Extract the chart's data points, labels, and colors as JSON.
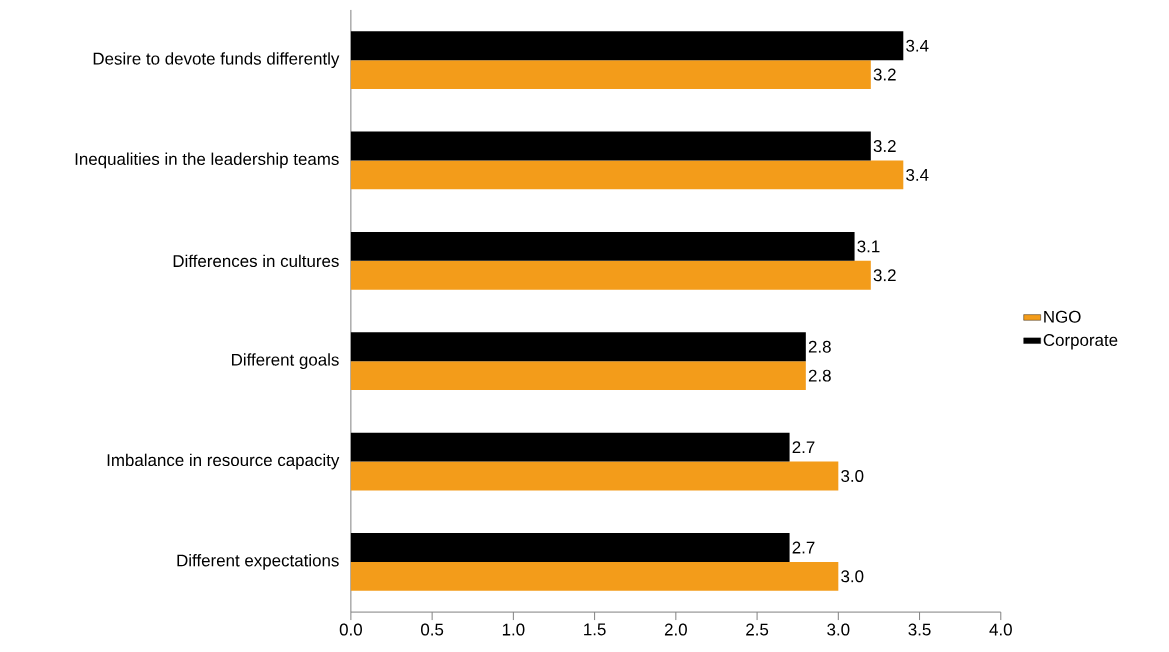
{
  "chart_data": {
    "type": "bar",
    "orientation": "horizontal",
    "categories": [
      "Desire to devote funds differently",
      "Inequalities in the leadership teams",
      "Differences in cultures",
      "Different goals",
      "Imbalance in resource capacity",
      "Different expectations"
    ],
    "series": [
      {
        "name": "NGO",
        "color": "#f39c1a",
        "values": [
          3.2,
          3.4,
          3.2,
          2.8,
          3.0,
          3.0
        ],
        "value_labels": [
          "3.2",
          "3.4",
          "3.2",
          "2.8",
          "3.0",
          "3.0"
        ]
      },
      {
        "name": "Corporate",
        "color": "#000000",
        "values": [
          3.4,
          3.2,
          3.1,
          2.8,
          2.7,
          2.7
        ],
        "value_labels": [
          "3.4",
          "3.2",
          "3.1",
          "2.8",
          "2.7",
          "2.7"
        ]
      }
    ],
    "xlim": [
      0,
      4
    ],
    "xticks": [
      {
        "value": 0,
        "label": "0.0"
      },
      {
        "value": 0.5,
        "label": "0.5"
      },
      {
        "value": 1,
        "label": "1.0"
      },
      {
        "value": 1.5,
        "label": "1.5"
      },
      {
        "value": 2,
        "label": "2.0"
      },
      {
        "value": 2.5,
        "label": "2.5"
      },
      {
        "value": 3,
        "label": "3.0"
      },
      {
        "value": 3.5,
        "label": "3.5"
      },
      {
        "value": 4,
        "label": "4.0"
      }
    ],
    "legend": "right",
    "grid": false
  }
}
